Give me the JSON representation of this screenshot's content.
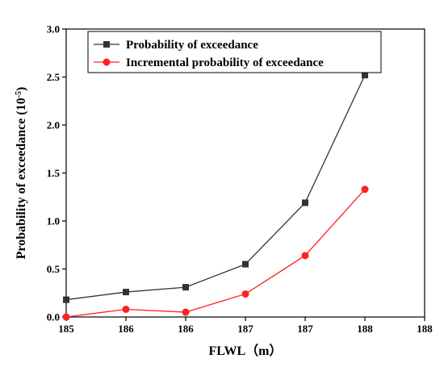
{
  "chart_data": {
    "type": "line",
    "xlabel": "FLWL（m）",
    "ylabel": "Probability of exceedance (10",
    "ylabel_sup": "-5",
    "ylabel_suffix": ")",
    "x_tick_labels": [
      "185",
      "186",
      "186",
      "187",
      "187",
      "188",
      "188"
    ],
    "y_ticks": [
      "0.0",
      "0.5",
      "1.0",
      "1.5",
      "2.0",
      "2.5",
      "3.0"
    ],
    "ylim": [
      0,
      3.0
    ],
    "x_index_range": [
      0,
      6
    ],
    "grid": false,
    "legend_position": "top-left",
    "series": [
      {
        "name": "Probability of exceedance",
        "color": "#333333",
        "marker": "square",
        "x": [
          0,
          1,
          2,
          3,
          4,
          5
        ],
        "values": [
          0.18,
          0.26,
          0.31,
          0.55,
          1.19,
          2.52
        ]
      },
      {
        "name": "Incremental probability of exceedance",
        "color": "#ff2020",
        "marker": "circle",
        "x": [
          0,
          1,
          2,
          3,
          4,
          5
        ],
        "values": [
          0.0,
          0.08,
          0.05,
          0.24,
          0.64,
          1.33
        ]
      }
    ]
  }
}
